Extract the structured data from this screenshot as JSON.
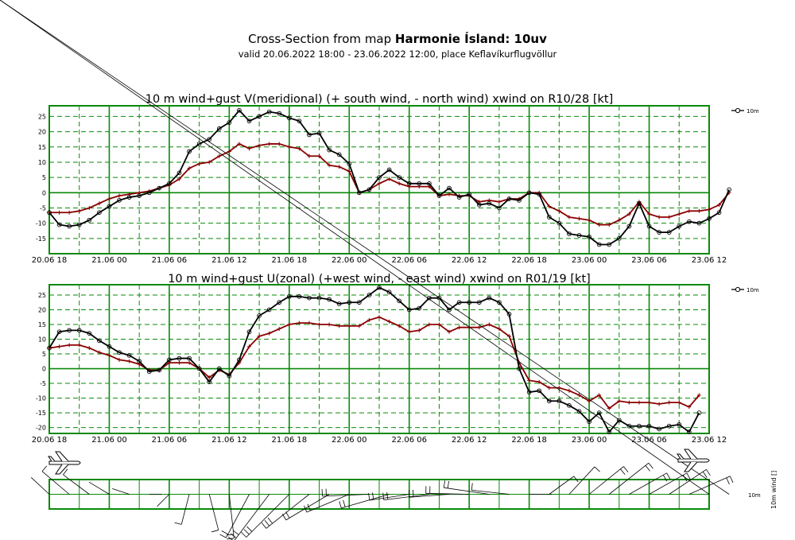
{
  "header": {
    "title_prefix": "Cross-Section from map ",
    "title_bold": "Harmonie Ísland: 10uv",
    "subtitle": "valid 20.06.2022 18:00 - 23.06.2022 12:00, place Keflavíkurflugvöllur"
  },
  "colors": {
    "grid": "#0a8a0a",
    "wind": "#000000",
    "gust": "#8b0000",
    "barb": "#000000"
  },
  "chart_data": [
    {
      "type": "line",
      "title": "10 m wind+gust V(meridional) (+ south wind, - north wind) xwind on R10/28 [kt]",
      "legend": "10m",
      "x_tick_labels": [
        "20.06 18",
        "21.06 00",
        "21.06 06",
        "21.06 12",
        "21.06 18",
        "22.06 00",
        "22.06 06",
        "22.06 12",
        "22.06 18",
        "23.06 00",
        "23.06 06",
        "23.06 12"
      ],
      "y_ticks": [
        25,
        20,
        15,
        10,
        5,
        0,
        -5,
        -10,
        -15
      ],
      "ylim": [
        -20,
        28.5
      ],
      "xlim": [
        0,
        66
      ],
      "series": [
        {
          "name": "wind",
          "values": [
            -6.5,
            -10.5,
            -11,
            -10.5,
            -9,
            -6.5,
            -4.5,
            -2.5,
            -1.5,
            -1,
            0,
            1.5,
            3,
            6.5,
            13.5,
            16,
            17.5,
            21,
            23,
            27,
            23.5,
            25,
            26.5,
            26,
            24.5,
            23.5,
            19,
            19.5,
            14,
            12.5,
            9.5,
            0,
            1,
            5,
            7.5,
            5,
            3,
            3,
            3,
            -1,
            1.5,
            -1.5,
            -0.5,
            -4,
            -3.5,
            -5,
            -2,
            -2.5,
            0,
            -0.5,
            -8,
            -10,
            -13.5,
            -14,
            -14.5,
            -17,
            -17,
            -15,
            -11,
            -3.5,
            -11,
            -13,
            -13,
            -11,
            -9.5,
            -10,
            -8.5,
            -6.5,
            1
          ]
        },
        {
          "name": "gust",
          "values": [
            -6.5,
            -6.5,
            -6.5,
            -6,
            -5,
            -3.5,
            -2,
            -1,
            -0.5,
            0,
            0.5,
            1.5,
            2.5,
            4.5,
            8,
            9.5,
            10,
            12,
            13.5,
            16,
            14.5,
            15.5,
            16,
            16,
            15,
            14.5,
            12,
            12,
            9,
            8.5,
            7,
            0,
            1,
            3,
            4.5,
            3,
            2,
            2,
            2,
            -1,
            -0.5,
            -1,
            -1,
            -3,
            -2.5,
            -3,
            -2,
            -2,
            0,
            0,
            -4.5,
            -6,
            -8,
            -8.5,
            -9,
            -10.5,
            -10.5,
            -9,
            -7,
            -3,
            -7,
            -8,
            -8,
            -7,
            -6,
            -6,
            -5.5,
            -4,
            0
          ]
        }
      ]
    },
    {
      "type": "line",
      "title": "10 m wind+gust U(zonal) (+west wind, - east wind) xwind on R01/19 [kt]",
      "legend": "10m",
      "x_tick_labels": [
        "20.06 18",
        "21.06 00",
        "21.06 06",
        "21.06 12",
        "21.06 18",
        "22.06 00",
        "22.06 06",
        "22.06 12",
        "22.06 18",
        "23.06 00",
        "23.06 06",
        "23.06 12"
      ],
      "y_ticks": [
        25,
        20,
        15,
        10,
        5,
        0,
        -5,
        -10,
        -15,
        -20
      ],
      "ylim": [
        -22,
        28.5
      ],
      "xlim": [
        0,
        66
      ],
      "series": [
        {
          "name": "wind",
          "values": [
            7,
            12.5,
            13,
            13,
            12,
            9.5,
            7.5,
            5.5,
            4.5,
            2.5,
            -1,
            -0.5,
            3,
            3.5,
            3.5,
            0,
            -4.5,
            0,
            -2.5,
            3,
            12.5,
            18,
            20,
            22.5,
            24.5,
            24.5,
            24,
            24,
            23.5,
            22,
            22.5,
            22.5,
            25,
            27.5,
            26,
            23,
            20,
            20.5,
            24,
            24,
            20,
            22.5,
            22.5,
            22.5,
            24,
            22.5,
            18.5,
            0,
            -8,
            -7.5,
            -11,
            -11,
            -12.5,
            -14.5,
            -18,
            -15,
            -21.5,
            -17.5,
            -19.5,
            -19.5,
            -19.5,
            -20.5,
            -19.5,
            -19,
            -21.5,
            -15
          ]
        },
        {
          "name": "gust",
          "values": [
            7,
            7.5,
            8,
            8,
            7,
            5.5,
            4.5,
            3,
            2.5,
            1.5,
            -0.5,
            -0.5,
            2,
            2,
            2,
            0,
            -3,
            -0.5,
            -2,
            2,
            7.5,
            11,
            12,
            13.5,
            15,
            15.5,
            15.5,
            15,
            15,
            14.5,
            14.5,
            14.5,
            16.5,
            17.5,
            16,
            14.5,
            12.5,
            13,
            15,
            15,
            12.5,
            14,
            14,
            14,
            15,
            13.5,
            11,
            2,
            -4,
            -4.5,
            -6.5,
            -6.5,
            -7.5,
            -9,
            -11,
            -9,
            -13.5,
            -11,
            -11.5,
            -11.5,
            -11.5,
            -12,
            -11.5,
            -11.5,
            -13,
            -9
          ]
        }
      ]
    }
  ],
  "barbs": {
    "legend_top": "10m",
    "legend_side": "10m wind []"
  }
}
